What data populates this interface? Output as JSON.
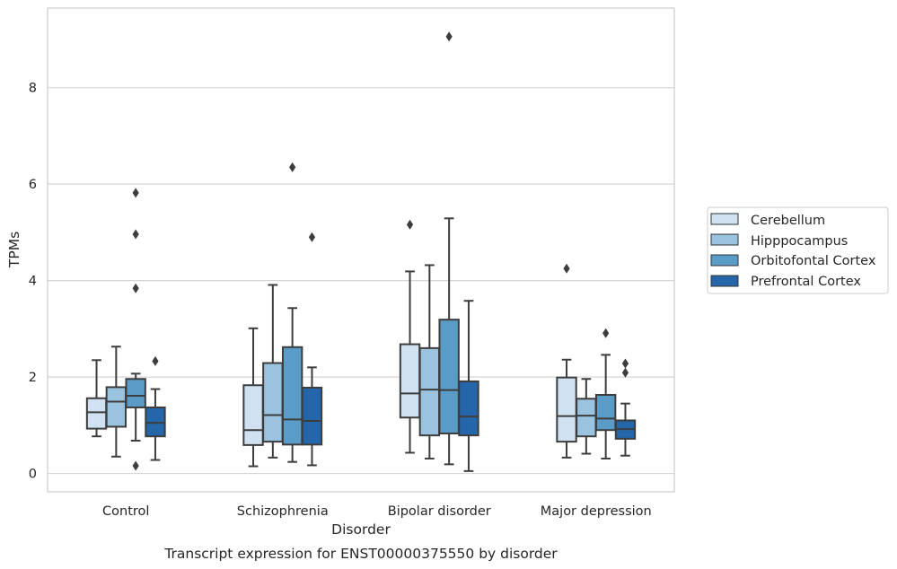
{
  "chart_data": {
    "type": "box",
    "title": "",
    "caption": "Transcript expression for ENST00000375550 by disorder",
    "xlabel": "Disorder",
    "ylabel": "TPMs",
    "ylim": [
      -0.38,
      9.65
    ],
    "yticks": [
      0,
      2,
      4,
      6,
      8
    ],
    "grid": "horizontal",
    "legend_position": "right",
    "categories": [
      "Control",
      "Schizophrenia",
      "Bipolar disorder",
      "Major depression"
    ],
    "series": [
      {
        "name": "Cerebellum",
        "color": "#d0e1f2",
        "boxes": [
          {
            "whisker_low": 0.77,
            "q1": 0.93,
            "median": 1.27,
            "q3": 1.56,
            "whisker_high": 2.35,
            "outliers": []
          },
          {
            "whisker_low": 0.15,
            "q1": 0.59,
            "median": 0.9,
            "q3": 1.83,
            "whisker_high": 3.01,
            "outliers": []
          },
          {
            "whisker_low": 0.43,
            "q1": 1.16,
            "median": 1.66,
            "q3": 2.68,
            "whisker_high": 4.19,
            "outliers": [
              5.16
            ]
          },
          {
            "whisker_low": 0.33,
            "q1": 0.66,
            "median": 1.19,
            "q3": 1.99,
            "whisker_high": 2.36,
            "outliers": [
              4.25
            ]
          }
        ]
      },
      {
        "name": "Hipppocampus",
        "color": "#9ac3df",
        "boxes": [
          {
            "whisker_low": 0.35,
            "q1": 0.97,
            "median": 1.49,
            "q3": 1.79,
            "whisker_high": 2.63,
            "outliers": []
          },
          {
            "whisker_low": 0.33,
            "q1": 0.66,
            "median": 1.21,
            "q3": 2.29,
            "whisker_high": 3.91,
            "outliers": []
          },
          {
            "whisker_low": 0.31,
            "q1": 0.79,
            "median": 1.74,
            "q3": 2.6,
            "whisker_high": 4.32,
            "outliers": []
          },
          {
            "whisker_low": 0.41,
            "q1": 0.77,
            "median": 1.2,
            "q3": 1.55,
            "whisker_high": 1.96,
            "outliers": []
          }
        ]
      },
      {
        "name": "Orbitofontal Cortex",
        "color": "#5a9bc7",
        "boxes": [
          {
            "whisker_low": 0.68,
            "q1": 1.37,
            "median": 1.61,
            "q3": 1.96,
            "whisker_high": 2.07,
            "outliers": [
              5.82,
              4.96,
              3.84,
              0.16
            ]
          },
          {
            "whisker_low": 0.24,
            "q1": 0.6,
            "median": 1.12,
            "q3": 2.62,
            "whisker_high": 3.43,
            "outliers": [
              6.35
            ]
          },
          {
            "whisker_low": 0.19,
            "q1": 0.83,
            "median": 1.73,
            "q3": 3.19,
            "whisker_high": 5.29,
            "outliers": [
              9.06
            ]
          },
          {
            "whisker_low": 0.31,
            "q1": 0.9,
            "median": 1.14,
            "q3": 1.63,
            "whisker_high": 2.46,
            "outliers": [
              2.91
            ]
          }
        ]
      },
      {
        "name": "Prefrontal Cortex",
        "color": "#2466a9",
        "boxes": [
          {
            "whisker_low": 0.28,
            "q1": 0.77,
            "median": 1.05,
            "q3": 1.37,
            "whisker_high": 1.75,
            "outliers": [
              2.33
            ]
          },
          {
            "whisker_low": 0.17,
            "q1": 0.6,
            "median": 1.09,
            "q3": 1.78,
            "whisker_high": 2.2,
            "outliers": [
              4.9
            ]
          },
          {
            "whisker_low": 0.05,
            "q1": 0.79,
            "median": 1.18,
            "q3": 1.91,
            "whisker_high": 3.58,
            "outliers": []
          },
          {
            "whisker_low": 0.37,
            "q1": 0.72,
            "median": 0.92,
            "q3": 1.1,
            "whisker_high": 1.45,
            "outliers": [
              2.28,
              2.09
            ]
          }
        ]
      }
    ]
  }
}
